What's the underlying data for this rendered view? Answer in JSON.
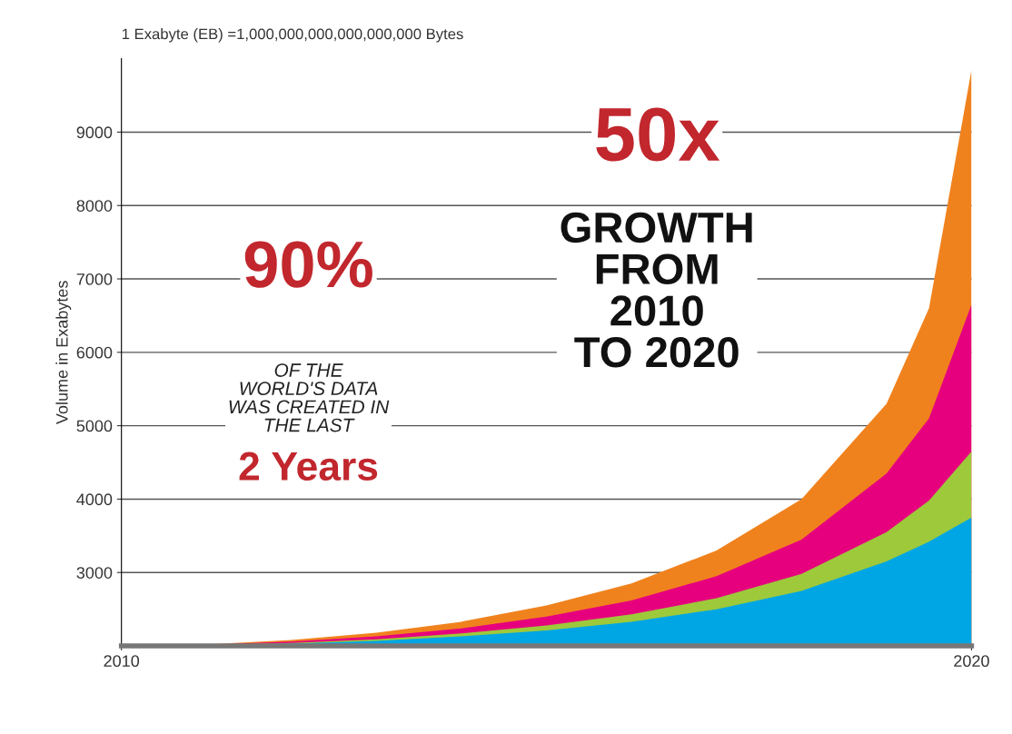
{
  "chart_data": {
    "type": "area",
    "ylabel": "Volume in Exabytes",
    "annotations": [
      "1 Exabyte (EB) =1,000,000,000,000,000,000 Bytes",
      "90%",
      "OF THE\nWORLD'S DATA\nWAS CREATED IN\nTHE LAST",
      "2 Years",
      "50x",
      "GROWTH\nFROM\n2010\nTO 2020"
    ],
    "x": [
      2010,
      2011,
      2012,
      2013,
      2014,
      2015,
      2016,
      2017,
      2018,
      2019,
      2019.5,
      2020
    ],
    "series": [
      {
        "color": "#f0821e",
        "values": [
          2000,
          2020,
          2080,
          2180,
          2330,
          2550,
          2850,
          3300,
          4000,
          5300,
          6600,
          9850
        ]
      },
      {
        "color": "#e6007e",
        "values": [
          2000,
          2015,
          2060,
          2130,
          2240,
          2400,
          2620,
          2950,
          3450,
          4350,
          5100,
          6650
        ]
      },
      {
        "color": "#9dc93b",
        "values": [
          2000,
          2010,
          2040,
          2090,
          2170,
          2280,
          2430,
          2650,
          2980,
          3550,
          3980,
          4650
        ]
      },
      {
        "color": "#00a6e4",
        "values": [
          2000,
          2005,
          2030,
          2070,
          2130,
          2210,
          2330,
          2500,
          2750,
          3150,
          3420,
          3750
        ]
      }
    ],
    "xlim": [
      2010,
      2020
    ],
    "xticks": [
      2010,
      2020
    ],
    "ylim": [
      2000,
      10000
    ],
    "yticks": [
      3000,
      4000,
      5000,
      6000,
      7000,
      8000,
      9000
    ],
    "grid": "y",
    "legend": false
  }
}
